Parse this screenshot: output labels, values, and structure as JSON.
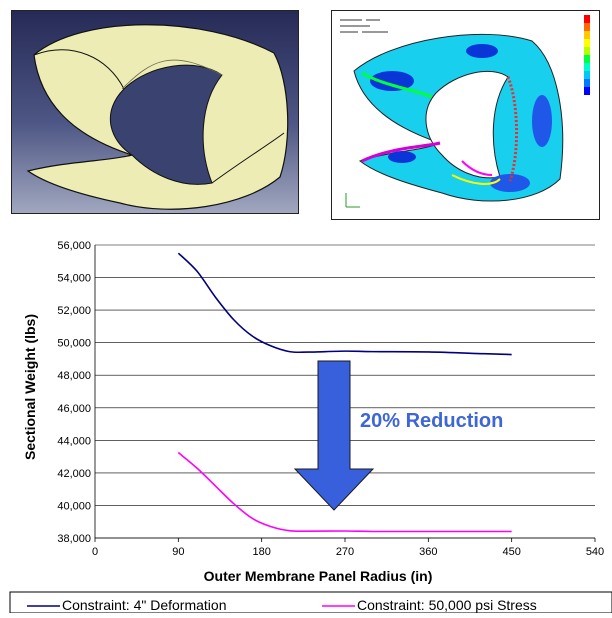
{
  "chart_data": {
    "type": "line",
    "title": "",
    "xlabel": "Outer Membrane Panel Radius (in)",
    "ylabel": "Sectional Weight (lbs)",
    "xlim": [
      0,
      540
    ],
    "ylim": [
      38000,
      56000
    ],
    "xticks": [
      "0",
      "90",
      "180",
      "270",
      "360",
      "450",
      "540"
    ],
    "yticks": [
      "38,000",
      "40,000",
      "42,000",
      "44,000",
      "46,000",
      "48,000",
      "50,000",
      "52,000",
      "54,000",
      "56,000"
    ],
    "grid": "horizontal",
    "legend_position": "bottom",
    "series": [
      {
        "name": "Constraint: 4\" Deformation",
        "color": "#000080",
        "x": [
          90,
          110,
          130,
          150,
          170,
          190,
          210,
          230,
          270,
          300,
          360,
          420,
          450
        ],
        "y": [
          55500,
          54400,
          52800,
          51400,
          50400,
          49800,
          49450,
          49420,
          49480,
          49450,
          49430,
          49320,
          49270
        ]
      },
      {
        "name": "Constraint: 50,000 psi Stress",
        "color": "#ff00ff",
        "x": [
          90,
          110,
          130,
          150,
          170,
          190,
          210,
          230,
          270,
          300,
          360,
          420,
          450
        ],
        "y": [
          43250,
          42300,
          41200,
          40100,
          39200,
          38700,
          38450,
          38420,
          38430,
          38400,
          38400,
          38400,
          38400
        ]
      }
    ],
    "annotations": [
      {
        "text": "20% Reduction",
        "color": "#3d66d6"
      }
    ],
    "arrow_color": "#3860dc"
  }
}
